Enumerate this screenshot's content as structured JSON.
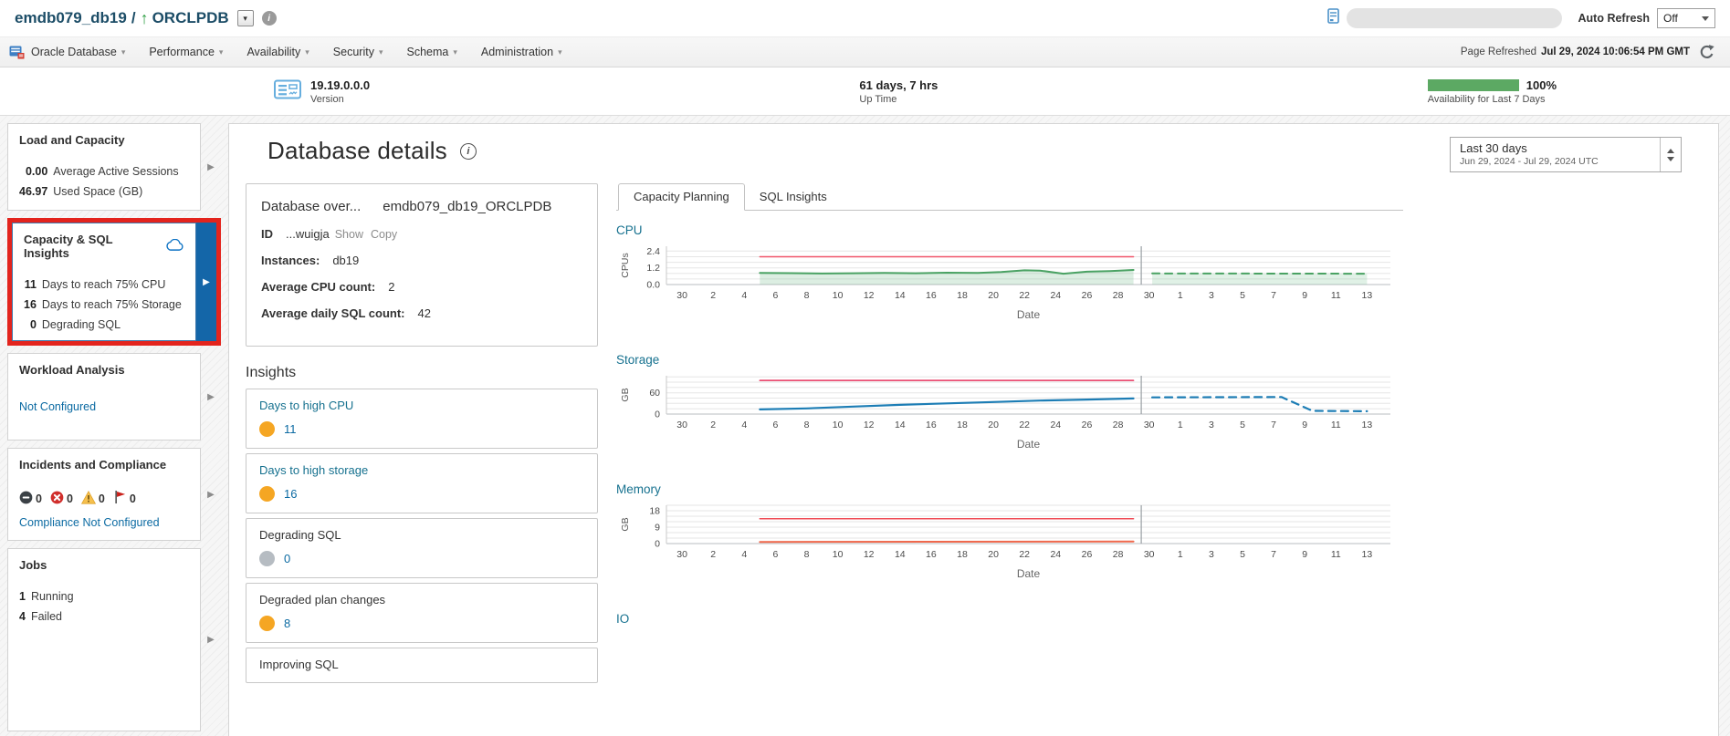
{
  "topbar": {
    "database": "emdb079_db19",
    "separator": "/",
    "pdb": "ORCLPDB",
    "auto_refresh_label": "Auto Refresh",
    "auto_refresh_value": "Off"
  },
  "menubar": {
    "items": [
      "Oracle Database",
      "Performance",
      "Availability",
      "Security",
      "Schema",
      "Administration"
    ],
    "page_refreshed_label": "Page Refreshed",
    "page_refreshed_time": "Jul 29, 2024 10:06:54 PM GMT"
  },
  "status_band": {
    "version_value": "19.19.0.0.0",
    "version_label": "Version",
    "uptime_value": "61 days, 7 hrs",
    "uptime_label": "Up Time",
    "availability_percent": "100%",
    "availability_label": "Availability for Last 7 Days"
  },
  "sidebar": {
    "cards": [
      {
        "id": "load-capacity",
        "title": "Load and Capacity",
        "stats": [
          {
            "value": "0.00",
            "label": "Average Active Sessions"
          },
          {
            "value": "46.97",
            "label": "Used Space (GB)"
          }
        ]
      },
      {
        "id": "capacity-sql-insights",
        "title": "Capacity & SQL Insights",
        "selected": true,
        "icon": "cloud-icon",
        "stats": [
          {
            "value": "11",
            "label": "Days to reach 75% CPU"
          },
          {
            "value": "16",
            "label": "Days to reach 75% Storage"
          },
          {
            "value": "0",
            "label": "Degrading SQL"
          }
        ]
      },
      {
        "id": "workload-analysis",
        "title": "Workload Analysis",
        "link": "Not Configured"
      },
      {
        "id": "incidents-compliance",
        "title": "Incidents and Compliance",
        "badges": [
          {
            "icon": "flat-icon",
            "count": "0"
          },
          {
            "icon": "critical-icon",
            "count": "0"
          },
          {
            "icon": "warning-icon",
            "count": "0"
          },
          {
            "icon": "flag-icon",
            "count": "0"
          }
        ],
        "link": "Compliance Not Configured"
      },
      {
        "id": "jobs",
        "title": "Jobs",
        "stats": [
          {
            "value": "1",
            "label": "Running"
          },
          {
            "value": "4",
            "label": "Failed"
          }
        ]
      }
    ]
  },
  "main": {
    "title": "Database details",
    "range_selector": {
      "primary": "Last 30 days",
      "secondary": "Jun 29, 2024 - Jul 29, 2024 UTC"
    },
    "overview": {
      "title_label": "Database over...",
      "title_value": "emdb079_db19_ORCLPDB",
      "rows": [
        {
          "label": "ID",
          "value": "...wuigja",
          "links": [
            "Show",
            "Copy"
          ]
        },
        {
          "label": "Instances:",
          "value": "db19"
        },
        {
          "label": "Average CPU count:",
          "value": "2"
        },
        {
          "label": "Average daily SQL count:",
          "value": "42"
        }
      ]
    },
    "insights_title": "Insights",
    "insight_cards": [
      {
        "title": "Days to high CPU",
        "title_is_link": true,
        "dot_color": "#F5A623",
        "value": "11"
      },
      {
        "title": "Days to high storage",
        "title_is_link": true,
        "dot_color": "#F5A623",
        "value": "16"
      },
      {
        "title": "Degrading SQL",
        "title_is_link": false,
        "dot_color": "#B6BCC2",
        "value": "0"
      },
      {
        "title": "Degraded plan changes",
        "title_is_link": false,
        "dot_color": "#F5A623",
        "value": "8"
      },
      {
        "title": "Improving SQL",
        "title_is_link": false,
        "dot_color": null,
        "value": null,
        "clipped": true
      }
    ],
    "tabs": [
      {
        "label": "Capacity Planning",
        "active": true
      },
      {
        "label": "SQL Insights",
        "active": false
      }
    ]
  },
  "chart_data": [
    {
      "id": "cpu",
      "type": "line",
      "title": "CPU",
      "xlabel": "Date",
      "ylabel": "CPUs",
      "x_range": [
        -1,
        45.5
      ],
      "x_tick_days": [
        0,
        2,
        4,
        6,
        8,
        10,
        12,
        14,
        16,
        18,
        20,
        22,
        24,
        26,
        28,
        30,
        32,
        34,
        36,
        38,
        40,
        42,
        44
      ],
      "x_tick_labels": [
        "30",
        "2",
        "4",
        "6",
        "8",
        "10",
        "12",
        "14",
        "16",
        "18",
        "20",
        "22",
        "24",
        "26",
        "28",
        "30",
        "1",
        "3",
        "5",
        "7",
        "9",
        "11",
        "13"
      ],
      "y_max": 2.75,
      "grid_step": 0.4,
      "divider_day": 29.5,
      "y_ticks": [
        {
          "v": 0,
          "label": "0.0"
        },
        {
          "v": 1.2,
          "label": "1.2"
        },
        {
          "v": 2.4,
          "label": "2.4"
        }
      ],
      "series": [
        {
          "name": "cpu-limit",
          "style": "solid",
          "color": "#F0566A",
          "width": 1.5,
          "fill": false,
          "points": [
            [
              5,
              2.0
            ],
            [
              29,
              2.0
            ]
          ]
        },
        {
          "name": "actual-usage",
          "style": "solid",
          "color": "#4AA263",
          "width": 2,
          "fill": true,
          "fill_color": "rgba(116,189,139,0.25)",
          "points": [
            [
              5,
              0.83
            ],
            [
              7,
              0.82
            ],
            [
              9,
              0.79
            ],
            [
              11,
              0.81
            ],
            [
              13,
              0.83
            ],
            [
              15,
              0.81
            ],
            [
              17,
              0.85
            ],
            [
              19,
              0.83
            ],
            [
              20.5,
              0.9
            ],
            [
              22,
              1.02
            ],
            [
              23,
              1.0
            ],
            [
              24.5,
              0.78
            ],
            [
              26,
              0.92
            ],
            [
              27.5,
              0.97
            ],
            [
              29,
              1.05
            ]
          ]
        },
        {
          "name": "forecast",
          "style": "dashed",
          "color": "#4AA263",
          "width": 2,
          "fill": true,
          "fill_color": "rgba(116,189,139,0.22)",
          "points": [
            [
              30.2,
              0.8
            ],
            [
              44,
              0.78
            ]
          ]
        }
      ]
    },
    {
      "id": "storage",
      "type": "line",
      "title": "Storage",
      "xlabel": "Date",
      "ylabel": "GB",
      "x_range": [
        -1,
        45.5
      ],
      "x_tick_days": [
        0,
        2,
        4,
        6,
        8,
        10,
        12,
        14,
        16,
        18,
        20,
        22,
        24,
        26,
        28,
        30,
        32,
        34,
        36,
        38,
        40,
        42,
        44
      ],
      "x_tick_labels": [
        "30",
        "2",
        "4",
        "6",
        "8",
        "10",
        "12",
        "14",
        "16",
        "18",
        "20",
        "22",
        "24",
        "26",
        "28",
        "30",
        "1",
        "3",
        "5",
        "7",
        "9",
        "11",
        "13"
      ],
      "y_max": 108,
      "grid_step": 15,
      "divider_day": 29.5,
      "y_ticks": [
        {
          "v": 0,
          "label": "0"
        },
        {
          "v": 60,
          "label": "60"
        }
      ],
      "series": [
        {
          "name": "storage-limit",
          "style": "solid",
          "color": "#E8355F",
          "width": 1.5,
          "fill": false,
          "points": [
            [
              5,
              95
            ],
            [
              29,
              95
            ]
          ]
        },
        {
          "name": "actual-used",
          "style": "solid",
          "color": "#1C7DB5",
          "width": 2.2,
          "fill": false,
          "points": [
            [
              5,
              13
            ],
            [
              8,
              16
            ],
            [
              11,
              21
            ],
            [
              14,
              26
            ],
            [
              17,
              30
            ],
            [
              20,
              34
            ],
            [
              23,
              38
            ],
            [
              26,
              41
            ],
            [
              29,
              44
            ]
          ]
        },
        {
          "name": "forecast",
          "style": "dashed",
          "color": "#1C7DB5",
          "width": 2.2,
          "fill": false,
          "points": [
            [
              30.2,
              47
            ],
            [
              38.5,
              48
            ],
            [
              40.5,
              9
            ],
            [
              44,
              8
            ]
          ]
        }
      ]
    },
    {
      "id": "memory",
      "type": "line",
      "title": "Memory",
      "xlabel": "Date",
      "ylabel": "GB",
      "x_range": [
        -1,
        45.5
      ],
      "x_tick_days": [
        0,
        2,
        4,
        6,
        8,
        10,
        12,
        14,
        16,
        18,
        20,
        22,
        24,
        26,
        28,
        30,
        32,
        34,
        36,
        38,
        40,
        42,
        44
      ],
      "x_tick_labels": [
        "30",
        "2",
        "4",
        "6",
        "8",
        "10",
        "12",
        "14",
        "16",
        "18",
        "20",
        "22",
        "24",
        "26",
        "28",
        "30",
        "1",
        "3",
        "5",
        "7",
        "9",
        "11",
        "13"
      ],
      "y_max": 21,
      "grid_step": 3,
      "divider_day": 29.5,
      "y_ticks": [
        {
          "v": 0,
          "label": "0"
        },
        {
          "v": 9,
          "label": "9"
        },
        {
          "v": 18,
          "label": "18"
        }
      ],
      "series": [
        {
          "name": "memory-limit",
          "style": "solid",
          "color": "#EF4B55",
          "width": 1.5,
          "fill": false,
          "points": [
            [
              5,
              13.6
            ],
            [
              29,
              13.6
            ]
          ]
        },
        {
          "name": "actual-used",
          "style": "solid",
          "color": "#F0684C",
          "width": 2,
          "fill": false,
          "points": [
            [
              5,
              0.9
            ],
            [
              29,
              1.1
            ]
          ]
        }
      ]
    },
    {
      "id": "io",
      "type": "line",
      "title": "IO",
      "empty": true
    }
  ],
  "colors": {
    "header_text": "#1C4D67",
    "link": "#0B6AA2",
    "title_teal": "#16718F",
    "selected_blue": "#1466A8",
    "highlight_red": "#E3241D",
    "availability_green": "#5CA963",
    "dot_orange": "#F5A623",
    "dot_gray": "#B6BCC2"
  }
}
